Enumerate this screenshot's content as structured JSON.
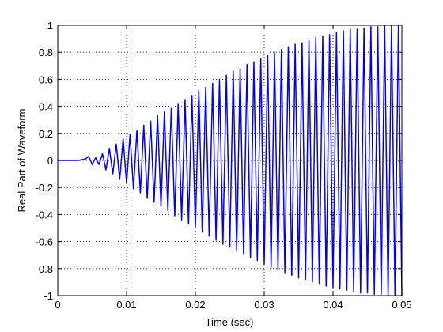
{
  "chart_data": {
    "type": "line",
    "xlabel": "Time (sec)",
    "ylabel": "Real Part of Waveform",
    "xlim": [
      0,
      0.05
    ],
    "xticks": [
      0,
      0.01,
      0.02,
      0.03,
      0.04,
      0.05
    ],
    "ylim": [
      -1,
      1
    ],
    "yticks": [
      -1,
      -0.8,
      -0.6,
      -0.4,
      -0.2,
      0,
      0.2,
      0.4,
      0.6,
      0.8,
      1
    ],
    "grid": true,
    "x": [
      0,
      0.003,
      0.004,
      0.0045,
      0.005,
      0.0055,
      0.006,
      0.0065,
      0.007,
      0.0075,
      0.008,
      0.0085,
      0.009,
      0.0095,
      0.01,
      0.0105,
      0.011,
      0.0115,
      0.012,
      0.0125,
      0.013,
      0.0135,
      0.014,
      0.0145,
      0.015,
      0.0155,
      0.016,
      0.0165,
      0.017,
      0.0175,
      0.018,
      0.0185,
      0.019,
      0.0195,
      0.02,
      0.0205,
      0.021,
      0.0215,
      0.022,
      0.0225,
      0.023,
      0.0235,
      0.024,
      0.0245,
      0.025,
      0.0255,
      0.026,
      0.0265,
      0.027,
      0.0275,
      0.028,
      0.0285,
      0.029,
      0.0295,
      0.03,
      0.0305,
      0.031,
      0.0315,
      0.032,
      0.0325,
      0.033,
      0.0335,
      0.034,
      0.0345,
      0.035,
      0.0355,
      0.036,
      0.0365,
      0.037,
      0.0375,
      0.038,
      0.0385,
      0.039,
      0.0395,
      0.04,
      0.0405,
      0.041,
      0.0415,
      0.042,
      0.0425,
      0.043,
      0.0435,
      0.044,
      0.0445,
      0.045,
      0.0455,
      0.046,
      0.0465,
      0.047,
      0.0475,
      0.048,
      0.0485,
      0.049,
      0.0495,
      0.05
    ],
    "series": [
      {
        "color": "#0000ff",
        "values": [
          0,
          0,
          0.01,
          0.03,
          -0.03,
          0.02,
          -0.03,
          0.05,
          -0.07,
          0.09,
          -0.1,
          0.12,
          -0.14,
          0.16,
          -0.17,
          0.19,
          -0.21,
          0.22,
          -0.24,
          0.26,
          -0.28,
          0.29,
          -0.31,
          0.33,
          -0.34,
          0.36,
          -0.37,
          0.39,
          -0.41,
          0.42,
          -0.44,
          0.45,
          -0.47,
          0.48,
          -0.5,
          0.52,
          -0.53,
          0.54,
          -0.56,
          0.57,
          -0.59,
          0.6,
          -0.62,
          0.63,
          -0.64,
          0.66,
          -0.67,
          0.68,
          -0.69,
          0.71,
          -0.72,
          0.73,
          -0.74,
          0.75,
          -0.77,
          0.78,
          -0.79,
          0.8,
          -0.81,
          0.82,
          -0.83,
          0.84,
          -0.85,
          0.86,
          -0.87,
          0.87,
          -0.88,
          0.89,
          -0.9,
          0.91,
          -0.91,
          0.92,
          -0.93,
          0.93,
          -0.94,
          0.95,
          -0.95,
          0.96,
          -0.96,
          0.97,
          -0.97,
          0.97,
          -0.98,
          0.98,
          -0.98,
          0.99,
          -0.99,
          0.99,
          -0.99,
          1,
          -1,
          1,
          -1,
          1,
          -1
        ]
      }
    ]
  }
}
